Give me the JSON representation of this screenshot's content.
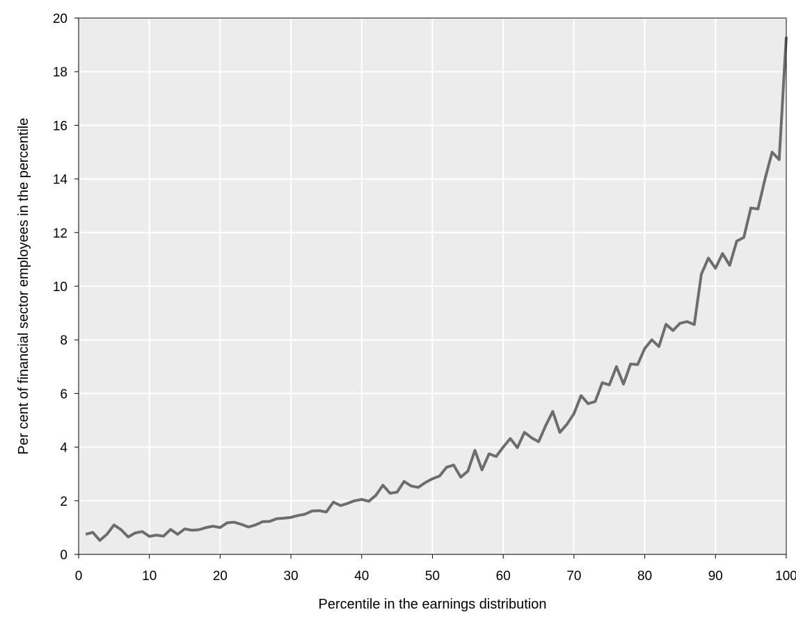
{
  "chart_data": {
    "type": "line",
    "title": "",
    "xlabel": "Percentile in the earnings distribution",
    "ylabel": "Per cent of financial sector employees in the percentile",
    "xlim": [
      0,
      100
    ],
    "ylim": [
      0,
      20
    ],
    "x_ticks": [
      0,
      10,
      20,
      30,
      40,
      50,
      60,
      70,
      80,
      90,
      100
    ],
    "y_ticks": [
      0,
      2,
      4,
      6,
      8,
      10,
      12,
      14,
      16,
      18,
      20
    ],
    "grid": true,
    "legend": "none",
    "colors": {
      "line": "#6d6d6d",
      "plot_bg": "#ececec",
      "grid": "#ffffff",
      "axis": "#000000"
    },
    "series": [
      {
        "x": [
          1,
          2,
          3,
          4,
          5,
          6,
          7,
          8,
          9,
          10,
          11,
          12,
          13,
          14,
          15,
          16,
          17,
          18,
          19,
          20,
          21,
          22,
          23,
          24,
          25,
          26,
          27,
          28,
          29,
          30,
          31,
          32,
          33,
          34,
          35,
          36,
          37,
          38,
          39,
          40,
          41,
          42,
          43,
          44,
          45,
          46,
          47,
          48,
          49,
          50,
          51,
          52,
          53,
          54,
          55,
          56,
          57,
          58,
          59,
          60,
          61,
          62,
          63,
          64,
          65,
          66,
          67,
          68,
          69,
          70,
          71,
          72,
          73,
          74,
          75,
          76,
          77,
          78,
          79,
          80,
          81,
          82,
          83,
          84,
          85,
          86,
          87,
          88,
          89,
          90,
          91,
          92,
          93,
          94,
          95,
          96,
          97,
          98,
          99,
          100
        ],
        "values": [
          0.75,
          0.82,
          0.52,
          0.75,
          1.1,
          0.92,
          0.65,
          0.8,
          0.85,
          0.67,
          0.72,
          0.68,
          0.93,
          0.75,
          0.95,
          0.9,
          0.92,
          1.0,
          1.05,
          1.0,
          1.18,
          1.2,
          1.12,
          1.02,
          1.1,
          1.22,
          1.23,
          1.33,
          1.35,
          1.38,
          1.45,
          1.5,
          1.62,
          1.63,
          1.58,
          1.95,
          1.82,
          1.9,
          2.0,
          2.05,
          1.98,
          2.2,
          2.58,
          2.28,
          2.32,
          2.72,
          2.55,
          2.5,
          2.68,
          2.82,
          2.92,
          3.25,
          3.33,
          2.88,
          3.1,
          3.88,
          3.15,
          3.75,
          3.65,
          4.0,
          4.32,
          3.98,
          4.55,
          4.35,
          4.2,
          4.8,
          5.33,
          4.55,
          4.85,
          5.25,
          5.92,
          5.62,
          5.7,
          6.4,
          6.32,
          7.0,
          6.35,
          7.1,
          7.08,
          7.68,
          8.0,
          7.75,
          8.58,
          8.35,
          8.62,
          8.68,
          8.57,
          10.45,
          11.05,
          10.67,
          11.22,
          10.78,
          11.68,
          11.82,
          12.92,
          12.88,
          14.0,
          15.0,
          14.72,
          19.3
        ]
      }
    ]
  }
}
